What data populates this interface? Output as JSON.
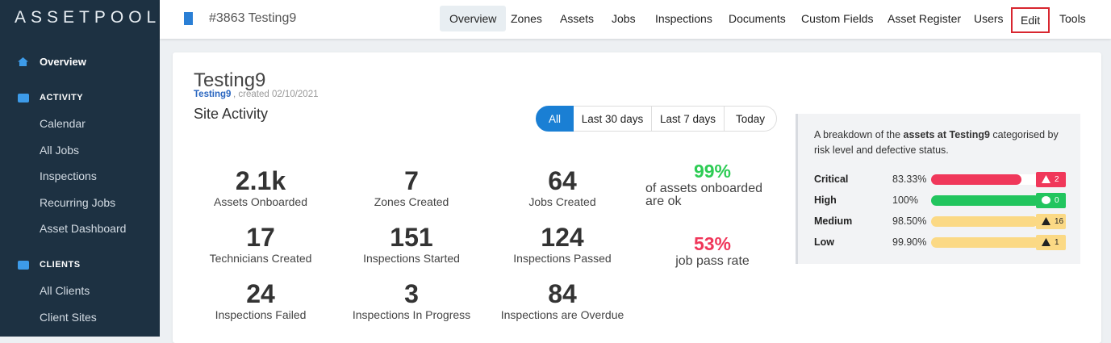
{
  "sidebar": {
    "brand": "ASSETPOOL.",
    "overview": "Overview",
    "sections": [
      {
        "title": "ACTIVITY",
        "links": [
          "Calendar",
          "All Jobs",
          "Inspections",
          "Recurring Jobs",
          "Asset Dashboard"
        ]
      },
      {
        "title": "CLIENTS",
        "links": [
          "All Clients",
          "Client Sites"
        ]
      }
    ]
  },
  "header": {
    "site": "#3863 Testing9",
    "tabs": [
      "Overview",
      "Zones",
      "Assets",
      "Jobs",
      "Inspections",
      "Documents",
      "Custom Fields",
      "Asset Register",
      "Users",
      "Edit",
      "Tools"
    ]
  },
  "page": {
    "title": "Testing9",
    "subtitle_link": "Testing9",
    "subtitle_rest": ", created 02/10/2021",
    "section": "Site Activity",
    "filters": [
      "All",
      "Last 30 days",
      "Last 7 days",
      "Today"
    ],
    "stats": [
      {
        "value": "2.1k",
        "label": "Assets Onboarded"
      },
      {
        "value": "7",
        "label": "Zones Created"
      },
      {
        "value": "64",
        "label": "Jobs Created"
      },
      {
        "value": "17",
        "label": "Technicians Created"
      },
      {
        "value": "151",
        "label": "Inspections Started"
      },
      {
        "value": "124",
        "label": "Inspections Passed"
      },
      {
        "value": "24",
        "label": "Inspections Failed"
      },
      {
        "value": "3",
        "label": "Inspections In Progress"
      },
      {
        "value": "84",
        "label": "Inspections are Overdue"
      }
    ],
    "highlights": [
      {
        "value": "99%",
        "label": "of assets onboarded are ok",
        "color": "#2ecc55"
      },
      {
        "value": "53%",
        "label": "job pass rate",
        "color": "#f0375a"
      }
    ]
  },
  "breakdown": {
    "intro_pre": "A breakdown of the ",
    "intro_bold": "assets at Testing9",
    "intro_post": " categorised by risk level and defective status.",
    "rows": [
      {
        "level": "Critical",
        "percent": {
          "value": 83.33,
          "label": "83.33%"
        },
        "count": 2,
        "color": "#f0375a"
      },
      {
        "level": "High",
        "percent": {
          "value": 100,
          "label": "100%"
        },
        "count": 0,
        "color": "#22c55e"
      },
      {
        "level": "Medium",
        "percent": {
          "value": 98.5,
          "label": "98.50%"
        },
        "count": 16,
        "color": "#fbd985"
      },
      {
        "level": "Low",
        "percent": {
          "value": 99.9,
          "label": "99.90%"
        },
        "count": 1,
        "color": "#fbd985"
      }
    ]
  }
}
